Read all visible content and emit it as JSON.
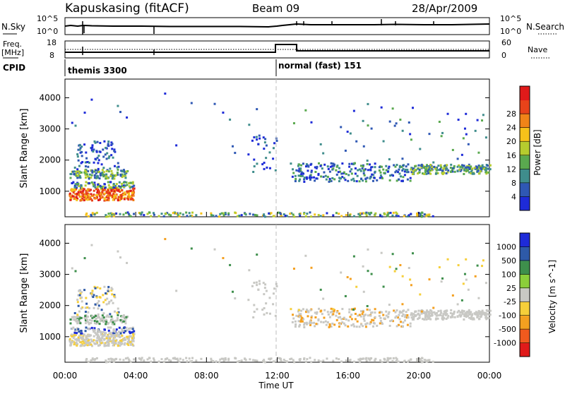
{
  "header": {
    "station": "Kapuskasing (fitACF)",
    "beam": "Beam 09",
    "date": "28/Apr/2009"
  },
  "colors": {
    "power": [
      "#1e2bd8",
      "#2f58b4",
      "#3f8d8c",
      "#5aa94f",
      "#b6cc2e",
      "#f6c21a",
      "#f08418",
      "#e8431a",
      "#e01a1a"
    ],
    "velocity": [
      "#e01a1a",
      "#f05a1e",
      "#f4a020",
      "#f6cf3a",
      "#c8c8c4",
      "#8bcf3a",
      "#3e8f4c",
      "#2e5aa8",
      "#1e2bd8"
    ],
    "gridline": "#bdbdbd"
  },
  "panels": {
    "nsky": {
      "label": "N.Sky",
      "ticks": [
        "10^5",
        "10^0"
      ],
      "right_label": "N.Search",
      "right_ticks": [
        "10^5",
        "10^0"
      ]
    },
    "freq": {
      "label_line1": "Freq.",
      "label_line2": "[MHz]",
      "ticks": [
        "18",
        "8"
      ],
      "right_label": "Nave",
      "right_ticks": [
        "60",
        "0"
      ]
    },
    "cpid": {
      "label": "CPID",
      "modes": [
        {
          "name": "themis 3300",
          "start_hour": 0
        },
        {
          "name": "normal (fast) 151",
          "start_hour": 12
        }
      ]
    }
  },
  "chart_data": [
    {
      "type": "heatmap",
      "name": "power",
      "ylabel": "Slant Range [km]",
      "yticks": [
        1000,
        2000,
        3000,
        4000
      ],
      "ylim": [
        180,
        4600
      ],
      "xlim": [
        0,
        24
      ],
      "colorbar": {
        "label": "Power [dB]",
        "ticks": [
          4,
          8,
          12,
          16,
          20,
          24,
          28
        ],
        "range": [
          0,
          32
        ]
      }
    },
    {
      "type": "heatmap",
      "name": "velocity",
      "ylabel": "Slant Range [km]",
      "yticks": [
        1000,
        2000,
        3000,
        4000
      ],
      "ylim": [
        180,
        4600
      ],
      "xlim": [
        0,
        24
      ],
      "colorbar": {
        "label": "Velocity [m s^-1]",
        "ticks": [
          "1000",
          "500",
          "100",
          "25",
          "-25",
          "-100",
          "-500",
          "-1000"
        ]
      }
    }
  ],
  "xaxis": {
    "label": "Time UT",
    "ticks": [
      "00:00",
      "04:00",
      "08:00",
      "12:00",
      "16:00",
      "20:00",
      "00:00"
    ],
    "tick_hours": [
      0,
      4,
      8,
      12,
      16,
      20,
      24
    ]
  }
}
